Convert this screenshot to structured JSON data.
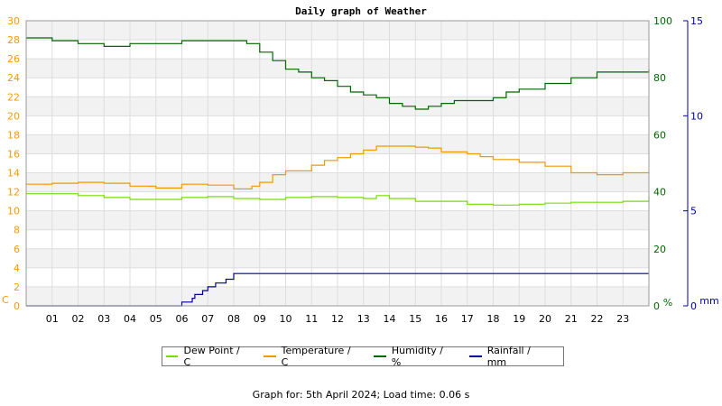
{
  "chart_data": {
    "type": "line",
    "title": "Daily graph of Weather",
    "x_ticks": [
      "01",
      "02",
      "03",
      "04",
      "05",
      "06",
      "07",
      "08",
      "09",
      "10",
      "11",
      "12",
      "13",
      "14",
      "15",
      "16",
      "17",
      "18",
      "19",
      "20",
      "21",
      "22",
      "23"
    ],
    "xlim": [
      0,
      24
    ],
    "axes": {
      "left": {
        "unit": "C",
        "min": 0,
        "max": 30,
        "ticks": [
          0,
          2,
          4,
          6,
          8,
          10,
          12,
          14,
          16,
          18,
          20,
          22,
          24,
          26,
          28,
          30
        ],
        "color": "#ff9900"
      },
      "right1": {
        "unit": "%",
        "min": 0,
        "max": 100,
        "ticks": [
          0,
          20,
          40,
          60,
          80,
          100
        ],
        "color": "#006600"
      },
      "right2": {
        "unit": "mm",
        "min": 0,
        "max": 15,
        "ticks": [
          0,
          5,
          10,
          15
        ],
        "color": "#000099"
      }
    },
    "series": [
      {
        "name": "Dew Point / C",
        "axis": "left",
        "color": "#77dd00",
        "points": [
          [
            0,
            11.8
          ],
          [
            1,
            11.8
          ],
          [
            2,
            11.6
          ],
          [
            3,
            11.4
          ],
          [
            4,
            11.2
          ],
          [
            5,
            11.2
          ],
          [
            6,
            11.4
          ],
          [
            7,
            11.5
          ],
          [
            8,
            11.3
          ],
          [
            9,
            11.2
          ],
          [
            10,
            11.4
          ],
          [
            11,
            11.5
          ],
          [
            12,
            11.4
          ],
          [
            13,
            11.3
          ],
          [
            13.5,
            11.6
          ],
          [
            14,
            11.3
          ],
          [
            15,
            11.0
          ],
          [
            16,
            11.0
          ],
          [
            17,
            10.7
          ],
          [
            18,
            10.6
          ],
          [
            19,
            10.7
          ],
          [
            20,
            10.8
          ],
          [
            21,
            10.9
          ],
          [
            22,
            10.9
          ],
          [
            23,
            11.0
          ],
          [
            24,
            11.5
          ]
        ]
      },
      {
        "name": "Temperature / C",
        "axis": "left",
        "color": "#ee9900",
        "points": [
          [
            0,
            12.8
          ],
          [
            1,
            12.9
          ],
          [
            2,
            13.0
          ],
          [
            3,
            12.9
          ],
          [
            4,
            12.6
          ],
          [
            5,
            12.4
          ],
          [
            6,
            12.8
          ],
          [
            7,
            12.7
          ],
          [
            8,
            12.3
          ],
          [
            8.7,
            12.6
          ],
          [
            9,
            13.0
          ],
          [
            9.5,
            13.8
          ],
          [
            10,
            14.2
          ],
          [
            11,
            14.8
          ],
          [
            11.5,
            15.3
          ],
          [
            12,
            15.6
          ],
          [
            12.5,
            16.0
          ],
          [
            13,
            16.4
          ],
          [
            13.5,
            16.8
          ],
          [
            14,
            16.8
          ],
          [
            15,
            16.7
          ],
          [
            15.5,
            16.6
          ],
          [
            16,
            16.2
          ],
          [
            17,
            16.0
          ],
          [
            17.5,
            15.7
          ],
          [
            18,
            15.4
          ],
          [
            19,
            15.1
          ],
          [
            20,
            14.7
          ],
          [
            21,
            14.0
          ],
          [
            22,
            13.8
          ],
          [
            23,
            14.0
          ],
          [
            24,
            14.1
          ]
        ]
      },
      {
        "name": "Humidity / %",
        "axis": "right1",
        "color": "#006600",
        "points": [
          [
            0,
            94
          ],
          [
            1,
            93
          ],
          [
            2,
            92
          ],
          [
            3,
            91
          ],
          [
            4,
            92
          ],
          [
            5,
            92
          ],
          [
            6,
            93
          ],
          [
            7,
            93
          ],
          [
            8,
            93
          ],
          [
            8.5,
            92
          ],
          [
            9,
            89
          ],
          [
            9.5,
            86
          ],
          [
            10,
            83
          ],
          [
            10.5,
            82
          ],
          [
            11,
            80
          ],
          [
            11.5,
            79
          ],
          [
            12,
            77
          ],
          [
            12.5,
            75
          ],
          [
            13,
            74
          ],
          [
            13.5,
            73
          ],
          [
            14,
            71
          ],
          [
            14.5,
            70
          ],
          [
            15,
            69
          ],
          [
            15.5,
            70
          ],
          [
            16,
            71
          ],
          [
            16.5,
            72
          ],
          [
            17,
            72
          ],
          [
            18,
            73
          ],
          [
            18.5,
            75
          ],
          [
            19,
            76
          ],
          [
            20,
            78
          ],
          [
            21,
            80
          ],
          [
            22,
            82
          ],
          [
            23,
            82
          ],
          [
            24,
            83
          ]
        ]
      },
      {
        "name": "Rainfall / mm",
        "axis": "right2",
        "color": "#000099",
        "points": [
          [
            0,
            0
          ],
          [
            5.9,
            0
          ],
          [
            6.0,
            0.2
          ],
          [
            6.4,
            0.4
          ],
          [
            6.5,
            0.6
          ],
          [
            6.8,
            0.8
          ],
          [
            7.0,
            1.0
          ],
          [
            7.3,
            1.2
          ],
          [
            7.7,
            1.4
          ],
          [
            8.0,
            1.7
          ],
          [
            24,
            1.7
          ]
        ]
      }
    ],
    "legend": [
      "Dew Point / C",
      "Temperature / C",
      "Humidity / %",
      "Rainfall / mm"
    ],
    "legend_position": "bottom",
    "grid": true
  },
  "footer_text": "Graph for: 5th April 2024; Load time: 0.06 s"
}
